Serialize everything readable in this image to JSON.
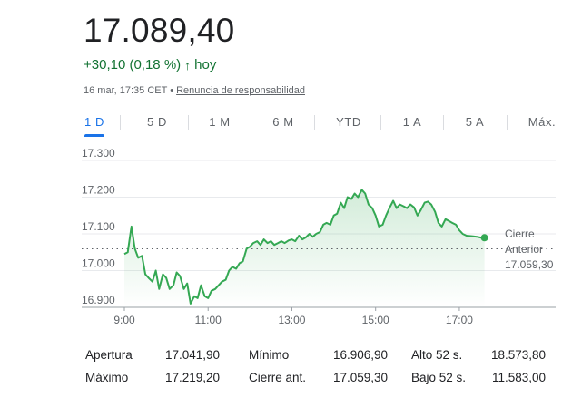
{
  "header": {
    "price": "17.089,40",
    "change": "+30,10 (0,18 %)",
    "change_suffix": "hoy",
    "timestamp": "16 mar, 17:35 CET",
    "bullet": "•",
    "disclaimer": "Renuncia de responsabilidad",
    "accent_up": "#137333"
  },
  "tabs": [
    {
      "label": "1 D",
      "active": true
    },
    {
      "label": "5 D"
    },
    {
      "label": "1 M"
    },
    {
      "label": "6 M"
    },
    {
      "label": "YTD"
    },
    {
      "label": "1 A"
    },
    {
      "label": "5 A"
    },
    {
      "label": "Máx."
    }
  ],
  "chart_data": {
    "type": "line",
    "y_ticks": [
      "17.300",
      "17.200",
      "17.100",
      "17.000",
      "16.900"
    ],
    "x_ticks": [
      "9:00",
      "11:00",
      "13:00",
      "15:00",
      "17:00"
    ],
    "ylim": [
      16900,
      17300
    ],
    "xlim_hours": [
      9.0,
      19.3
    ],
    "line_color": "#34a853",
    "previous_close": 17059.3,
    "previous_close_label_1": "Cierre",
    "previous_close_label_2": "Anterior",
    "previous_close_value": "17.059,30",
    "series": [
      {
        "x": [
          9.0,
          9.08,
          9.17,
          9.25,
          9.33,
          9.42,
          9.5,
          9.58,
          9.67,
          9.75,
          9.83,
          9.92,
          10.0,
          10.08,
          10.17,
          10.25,
          10.33,
          10.42,
          10.5,
          10.58,
          10.67,
          10.75,
          10.83,
          10.92,
          11.0,
          11.08,
          11.17,
          11.25,
          11.33,
          11.42,
          11.5,
          11.58,
          11.67,
          11.75,
          11.83,
          11.92,
          12.0,
          12.08,
          12.17,
          12.25,
          12.33,
          12.42,
          12.5,
          12.58,
          12.67,
          12.75,
          12.83,
          12.92,
          13.0,
          13.08,
          13.17,
          13.25,
          13.33,
          13.42,
          13.5,
          13.58,
          13.67,
          13.75,
          13.83,
          13.92,
          14.0,
          14.08,
          14.17,
          14.25,
          14.33,
          14.42,
          14.5,
          14.58,
          14.67,
          14.75,
          14.83,
          14.92,
          15.0,
          15.08,
          15.17,
          15.25,
          15.33,
          15.42,
          15.5,
          15.58,
          15.67,
          15.75,
          15.83,
          15.92,
          16.0,
          16.08,
          16.17,
          16.25,
          16.33,
          16.42,
          16.5,
          16.58,
          16.67,
          16.75,
          16.83,
          16.92,
          17.0,
          17.08,
          17.17,
          17.25,
          17.33,
          17.42,
          17.5,
          17.58
        ],
        "y": [
          17045,
          17050,
          17120,
          17060,
          17035,
          17040,
          16990,
          16980,
          16970,
          17000,
          16950,
          16990,
          16980,
          16950,
          16960,
          16995,
          16985,
          16950,
          16965,
          16910,
          16930,
          16925,
          16960,
          16930,
          16925,
          16945,
          16950,
          16960,
          16970,
          16975,
          17000,
          17010,
          17005,
          17020,
          17025,
          17060,
          17065,
          17075,
          17080,
          17070,
          17085,
          17075,
          17080,
          17070,
          17075,
          17080,
          17075,
          17082,
          17085,
          17080,
          17095,
          17085,
          17090,
          17100,
          17092,
          17100,
          17105,
          17125,
          17130,
          17125,
          17150,
          17155,
          17185,
          17170,
          17200,
          17195,
          17210,
          17200,
          17220,
          17210,
          17180,
          17170,
          17150,
          17120,
          17125,
          17150,
          17170,
          17190,
          17170,
          17180,
          17175,
          17170,
          17180,
          17172,
          17150,
          17165,
          17185,
          17188,
          17180,
          17160,
          17130,
          17120,
          17140,
          17135,
          17130,
          17125,
          17110,
          17100,
          17095,
          17094,
          17093,
          17092,
          17090,
          17089
        ]
      }
    ],
    "last_point": [
      17.6,
      17089.4
    ]
  },
  "stats": {
    "rows": [
      {
        "l1": "Apertura",
        "v1": "17.041,90",
        "l2": "Mínimo",
        "v2": "16.906,90",
        "l3": "Alto 52 s.",
        "v3": "18.573,80"
      },
      {
        "l1": "Máximo",
        "v1": "17.219,20",
        "l2": "Cierre ant.",
        "v2": "17.059,30",
        "l3": "Bajo 52 s.",
        "v3": "11.583,00"
      }
    ]
  }
}
